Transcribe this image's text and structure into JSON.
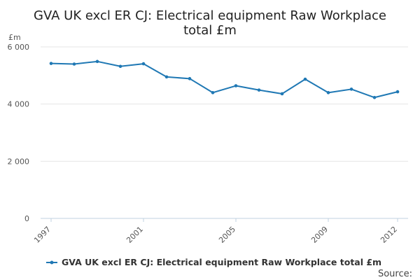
{
  "chart_data": {
    "type": "line",
    "title_line1": "GVA UK excl ER CJ: Electrical equipment Raw Workplace",
    "title_line2": "total £m",
    "y_unit": "£m",
    "ylim": [
      0,
      6000
    ],
    "yticks": [
      0,
      2000,
      4000,
      6000
    ],
    "ytick_labels": [
      "0",
      "2 000",
      "4 000",
      "6 000"
    ],
    "xlim": [
      1997,
      2012
    ],
    "xtick_labels": [
      "1997",
      "2001",
      "2005",
      "2009",
      "2012"
    ],
    "grid": true,
    "legend_position": "bottom",
    "series": [
      {
        "name": "GVA UK excl ER CJ: Electrical equipment Raw Workplace total £m",
        "color": "#1f78b4",
        "x": [
          1997,
          1998,
          1999,
          2000,
          2001,
          2002,
          2003,
          2004,
          2005,
          2006,
          2007,
          2008,
          2009,
          2010,
          2011,
          2012
        ],
        "values": [
          5420,
          5400,
          5490,
          5320,
          5410,
          4950,
          4890,
          4400,
          4640,
          4490,
          4360,
          4870,
          4400,
          4520,
          4230,
          4430
        ]
      }
    ],
    "source_label": "Source:"
  }
}
